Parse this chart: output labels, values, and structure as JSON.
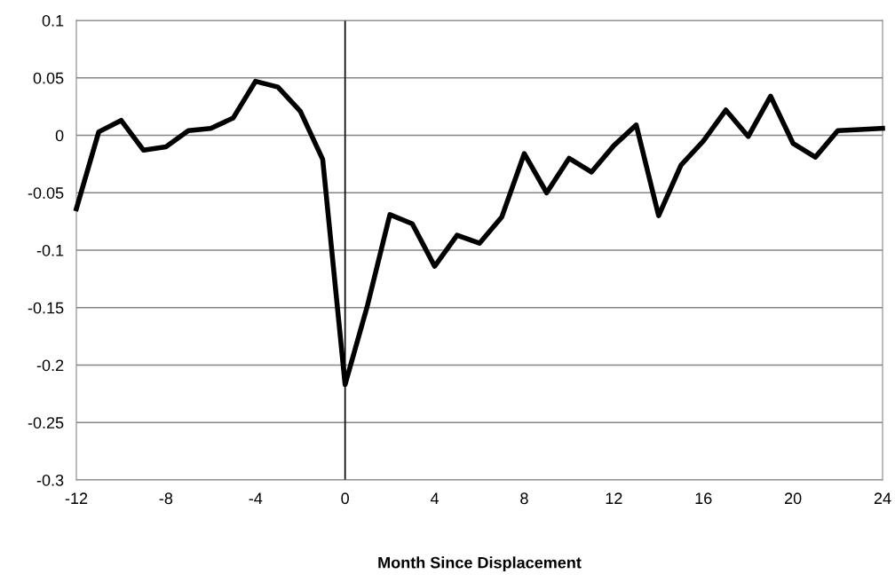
{
  "chart_data": {
    "type": "line",
    "xlabel": "Month Since Displacement",
    "x": [
      -12,
      -11,
      -10,
      -9,
      -8,
      -7,
      -6,
      -5,
      -4,
      -3,
      -2,
      -1,
      0,
      1,
      2,
      3,
      4,
      5,
      6,
      7,
      8,
      9,
      10,
      11,
      12,
      13,
      14,
      15,
      16,
      17,
      18,
      19,
      20,
      21,
      22,
      23,
      24
    ],
    "series": [
      {
        "color": "#000000",
        "values": [
          -0.064,
          0.003,
          0.013,
          -0.013,
          -0.01,
          0.004,
          0.006,
          0.015,
          0.047,
          0.042,
          0.021,
          -0.021,
          -0.217,
          -0.148,
          -0.069,
          -0.077,
          -0.114,
          -0.087,
          -0.094,
          -0.071,
          -0.016,
          -0.05,
          -0.02,
          -0.032,
          -0.009,
          0.009,
          -0.07,
          -0.026,
          -0.005,
          0.022,
          -0.001,
          0.034,
          -0.007,
          -0.019,
          0.004,
          0.005,
          0.006
        ]
      }
    ],
    "xlim": [
      -12,
      24
    ],
    "xticks": [
      -12,
      -8,
      -4,
      0,
      4,
      8,
      12,
      16,
      20,
      24
    ],
    "ylim": [
      -0.3,
      0.1
    ],
    "yticks": [
      -0.3,
      -0.25,
      -0.2,
      -0.15,
      -0.1,
      -0.05,
      0,
      0.05,
      0.1
    ],
    "ref_lines": [
      {
        "axis": "x",
        "value": 0,
        "color": "#000000"
      }
    ],
    "grid": "y",
    "marker": "none",
    "line_style": "solid"
  }
}
